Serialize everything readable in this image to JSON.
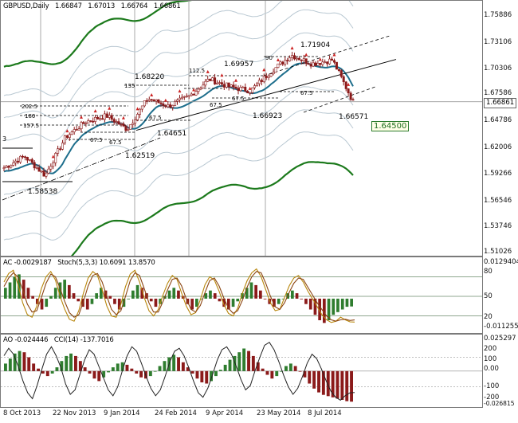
{
  "colors": {
    "background": "#ffffff",
    "candle": "#8b1a1a",
    "ema_blue": "#1d6e8c",
    "envelope_green": "#1c7a1c",
    "envelope_light": "#b9c8d2",
    "trend_line": "#000000",
    "ac_up": "#2f7d2f",
    "ac_down": "#8b1a1a",
    "stoch_main": "#b8860b",
    "stoch_signal": "#8b4513",
    "fractal_up": "#cc2222",
    "fractal_down": "#2255aa"
  },
  "main": {
    "symbol": "GBPUSD,Daily",
    "ohlc": [
      "1.66847",
      "1.67013",
      "1.66764",
      "1.66861"
    ],
    "current_price_label": "1.66861",
    "target_label": "1.64500",
    "y_ticks": [
      "1.75886",
      "1.73106",
      "1.70306",
      "1.67586",
      "1.64786",
      "1.62006",
      "1.59266",
      "1.56546",
      "1.53746",
      "1.51026"
    ],
    "annotations": [
      "1.58538",
      "1.62519",
      "1.64651",
      "1.66923",
      "1.68220",
      "1.69957",
      "1.71904",
      "1.66571"
    ],
    "fib_labels": [
      "202.5",
      "180",
      "157.5",
      "135",
      "112.5",
      "90",
      "67.5",
      "67.5",
      "67.5",
      "67.5",
      "67.5",
      "67.5"
    ],
    "left_marker": "3"
  },
  "ac_panel": {
    "header": [
      "AC -0.0029187",
      "Stoch(5,3,3) 10.6091 13.8570"
    ],
    "right_labels": [
      "0.0129404",
      "80",
      "50",
      "20",
      "-0.011255"
    ]
  },
  "ao_panel": {
    "header": [
      "AO -0.024446",
      "CCI(14) -137.7016"
    ],
    "right_labels": [
      "0.025297",
      "200",
      "100",
      "0.00",
      "-100",
      "-200",
      "-0.026815"
    ]
  },
  "x_axis": [
    "8 Oct 2013",
    "22 Nov 2013",
    "9 Jan 2014",
    "24 Feb 2014",
    "9 Apr 2014",
    "23 May 2014",
    "8 Jul 2014"
  ],
  "chart_data": [
    {
      "type": "candlestick",
      "title": "GBPUSD,Daily",
      "ylim": [
        1.5102,
        1.7702
      ],
      "x": [
        "2013-10-08",
        "2013-10-28",
        "2013-11-22",
        "2013-12-16",
        "2014-01-09",
        "2014-01-20",
        "2014-02-04",
        "2014-02-24",
        "2014-03-15",
        "2014-04-09",
        "2014-04-28",
        "2014-05-06",
        "2014-05-23",
        "2014-06-10",
        "2014-06-25",
        "2014-07-08",
        "2014-07-15",
        "2014-07-28"
      ],
      "series": [
        {
          "values": [
            1.6,
            1.612,
            1.592,
            1.632,
            1.648,
            1.654,
            1.64,
            1.672,
            1.664,
            1.674,
            1.692,
            1.684,
            1.68,
            1.7,
            1.717,
            1.708,
            1.712,
            1.6686
          ]
        }
      ],
      "levels": [
        {
          "label": "1.58538",
          "value": 1.58538
        },
        {
          "label": "1.62519",
          "value": 1.62519
        },
        {
          "label": "1.64651",
          "value": 1.64651
        },
        {
          "label": "1.66923",
          "value": 1.66923
        },
        {
          "label": "1.68220",
          "value": 1.6822
        },
        {
          "label": "1.69957",
          "value": 1.69957
        },
        {
          "label": "1.71904",
          "value": 1.71904
        },
        {
          "label": "1.66571",
          "value": 1.66571
        },
        {
          "label": "1.64500",
          "value": 1.645
        }
      ]
    },
    {
      "type": "bar",
      "title": "AC -0.0029187",
      "ylim": [
        -0.011255,
        0.0129404
      ],
      "values": [
        0.004,
        0.006,
        0.008,
        0.009,
        0.007,
        0.004,
        0.001,
        -0.002,
        -0.004,
        -0.003,
        0.001,
        0.004,
        0.006,
        0.007,
        0.005,
        0.002,
        -0.001,
        -0.003,
        -0.004,
        -0.002,
        0.002,
        0.004,
        0.003,
        0.001,
        -0.002,
        -0.004,
        -0.003,
        0.0,
        0.003,
        0.005,
        0.004,
        0.002,
        -0.001,
        -0.003,
        -0.002,
        0.001,
        0.003,
        0.004,
        0.003,
        0.001,
        -0.002,
        -0.004,
        -0.003,
        0.0,
        0.002,
        0.003,
        0.002,
        -0.001,
        -0.003,
        -0.004,
        -0.003,
        -0.001,
        0.002,
        0.004,
        0.006,
        0.005,
        0.003,
        0.0,
        -0.002,
        -0.003,
        -0.002,
        0.0,
        0.002,
        0.003,
        0.002,
        0.0,
        -0.002,
        -0.004,
        -0.006,
        -0.008,
        -0.009,
        -0.008,
        -0.006,
        -0.005,
        -0.004,
        -0.003,
        -0.0029
      ]
    },
    {
      "type": "line",
      "title": "Stoch(5,3,3) 10.6091 13.8570",
      "ylim": [
        0,
        100
      ],
      "series": [
        {
          "name": "Stoch(5,3,3)",
          "values": [
            72,
            85,
            90,
            68,
            40,
            22,
            18,
            35,
            62,
            80,
            88,
            75,
            50,
            30,
            15,
            12,
            28,
            55,
            78,
            88,
            82,
            60,
            35,
            20,
            18,
            38,
            65,
            84,
            90,
            72,
            48,
            28,
            20,
            30,
            52,
            70,
            82,
            76,
            55,
            35,
            22,
            25,
            45,
            68,
            80,
            75,
            58,
            38,
            24,
            20,
            32,
            55,
            74,
            86,
            92,
            80,
            60,
            40,
            28,
            30,
            48,
            66,
            78,
            82,
            72,
            58,
            46,
            34,
            22,
            14,
            10,
            12,
            18,
            14,
            11,
            10.6
          ]
        },
        {
          "name": "signal",
          "values": [
            65,
            78,
            86,
            80,
            60,
            38,
            26,
            28,
            48,
            70,
            84,
            80,
            62,
            42,
            25,
            18,
            22,
            42,
            66,
            82,
            85,
            72,
            50,
            30,
            22,
            28,
            50,
            74,
            86,
            82,
            62,
            40,
            26,
            26,
            42,
            60,
            76,
            78,
            66,
            46,
            30,
            26,
            36,
            56,
            74,
            78,
            66,
            48,
            32,
            24,
            28,
            44,
            64,
            80,
            88,
            86,
            70,
            50,
            34,
            30,
            40,
            56,
            70,
            78,
            76,
            64,
            52,
            40,
            30,
            20,
            14,
            12,
            14,
            15,
            13,
            13.86
          ]
        }
      ]
    },
    {
      "type": "bar",
      "title": "AO -0.024446",
      "ylim": [
        -0.026815,
        0.025297
      ],
      "values": [
        0.006,
        0.01,
        0.014,
        0.016,
        0.015,
        0.011,
        0.006,
        0.002,
        -0.002,
        -0.004,
        -0.002,
        0.003,
        0.008,
        0.012,
        0.014,
        0.012,
        0.008,
        0.003,
        -0.002,
        -0.006,
        -0.008,
        -0.005,
        -0.001,
        0.003,
        0.006,
        0.007,
        0.005,
        0.002,
        -0.002,
        -0.005,
        -0.006,
        -0.004,
        0.0,
        0.004,
        0.008,
        0.011,
        0.013,
        0.011,
        0.007,
        0.003,
        -0.002,
        -0.006,
        -0.009,
        -0.01,
        -0.008,
        -0.004,
        0.001,
        0.005,
        0.009,
        0.012,
        0.015,
        0.018,
        0.016,
        0.012,
        0.007,
        0.002,
        -0.003,
        -0.006,
        -0.004,
        0.0,
        0.004,
        0.006,
        0.004,
        0.0,
        -0.005,
        -0.01,
        -0.014,
        -0.017,
        -0.019,
        -0.02,
        -0.021,
        -0.022,
        -0.023,
        -0.024,
        -0.0244
      ]
    },
    {
      "type": "line",
      "title": "CCI(14) -137.7016",
      "ylim": [
        -220,
        220
      ],
      "series": [
        {
          "name": "CCI(14)",
          "values": [
            110,
            160,
            120,
            40,
            -60,
            -140,
            -180,
            -90,
            20,
            120,
            170,
            110,
            30,
            -80,
            -150,
            -120,
            -20,
            80,
            150,
            120,
            40,
            -40,
            -120,
            -160,
            -100,
            10,
            110,
            170,
            140,
            60,
            -30,
            -110,
            -160,
            -120,
            -30,
            70,
            140,
            160,
            110,
            30,
            -60,
            -140,
            -170,
            -110,
            -20,
            80,
            150,
            170,
            120,
            40,
            -50,
            -120,
            -90,
            10,
            100,
            180,
            200,
            150,
            70,
            -20,
            -100,
            -150,
            -110,
            -30,
            60,
            120,
            90,
            20,
            -60,
            -130,
            -170,
            -190,
            -160,
            -140,
            -137.7
          ]
        }
      ]
    }
  ]
}
